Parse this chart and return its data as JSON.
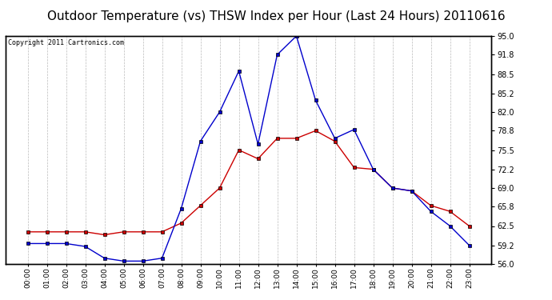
{
  "title": "Outdoor Temperature (vs) THSW Index per Hour (Last 24 Hours) 20110616",
  "copyright": "Copyright 2011 Cartronics.com",
  "hours": [
    "00:00",
    "01:00",
    "02:00",
    "03:00",
    "04:00",
    "05:00",
    "06:00",
    "07:00",
    "08:00",
    "09:00",
    "10:00",
    "11:00",
    "12:00",
    "13:00",
    "14:00",
    "15:00",
    "16:00",
    "17:00",
    "18:00",
    "19:00",
    "20:00",
    "21:00",
    "22:00",
    "23:00"
  ],
  "temp": [
    61.5,
    61.5,
    61.5,
    61.5,
    61.0,
    61.5,
    61.5,
    61.5,
    63.0,
    66.0,
    69.0,
    75.5,
    74.0,
    77.5,
    77.5,
    78.8,
    77.0,
    72.5,
    72.2,
    69.0,
    68.5,
    66.0,
    65.0,
    62.5
  ],
  "thsw": [
    59.5,
    59.5,
    59.5,
    59.0,
    57.0,
    56.5,
    56.5,
    57.0,
    65.5,
    77.0,
    82.0,
    89.0,
    76.5,
    91.8,
    95.0,
    84.0,
    77.5,
    79.0,
    72.2,
    69.0,
    68.5,
    65.0,
    62.5,
    59.2
  ],
  "temp_color": "#cc0000",
  "thsw_color": "#0000cc",
  "ylim": [
    56.0,
    95.0
  ],
  "yticks_right": [
    56.0,
    59.2,
    62.5,
    65.8,
    69.0,
    72.2,
    75.5,
    78.8,
    82.0,
    85.2,
    88.5,
    91.8,
    95.0
  ],
  "background_color": "#ffffff",
  "grid_color": "#bbbbbb",
  "title_fontsize": 11,
  "copyright_fontsize": 6,
  "marker": "s",
  "marker_size": 3,
  "linewidth": 1.0
}
